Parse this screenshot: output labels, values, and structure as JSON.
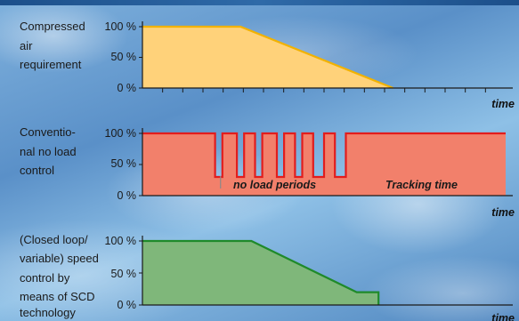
{
  "chart_data": [
    {
      "type": "area",
      "title": "Compressed air requirement",
      "title_lines": [
        "Compressed",
        "air",
        "requirement"
      ],
      "xlabel": "time",
      "y_ticks": [
        "100 %",
        "50 %",
        "0 %"
      ],
      "ylim": [
        0,
        100
      ],
      "x": [
        0,
        0.27,
        0.69
      ],
      "y": [
        100,
        100,
        0
      ],
      "fill": "#ffd27a",
      "stroke": "#f2b200"
    },
    {
      "type": "area",
      "title": "Conventional no load control",
      "title_lines": [
        "Conventio-",
        "nal no load",
        "control"
      ],
      "xlabel": "time",
      "y_ticks": [
        "100 %",
        "50 %",
        "0 %"
      ],
      "ylim": [
        0,
        100
      ],
      "x": [
        0,
        0.2,
        0.2,
        0.22,
        0.22,
        0.26,
        0.26,
        0.28,
        0.28,
        0.31,
        0.31,
        0.33,
        0.33,
        0.37,
        0.37,
        0.39,
        0.39,
        0.42,
        0.42,
        0.44,
        0.44,
        0.47,
        0.47,
        0.5,
        0.5,
        0.53,
        0.53,
        0.56,
        0.56,
        1.0
      ],
      "y": [
        100,
        100,
        30,
        30,
        100,
        100,
        30,
        30,
        100,
        100,
        30,
        30,
        100,
        100,
        30,
        30,
        100,
        100,
        30,
        30,
        100,
        100,
        30,
        30,
        100,
        100,
        30,
        30,
        100,
        100
      ],
      "annotations": [
        "no load periods",
        "Tracking time"
      ],
      "fill": "#f2806b",
      "stroke": "#e21d1d"
    },
    {
      "type": "area",
      "title": "(Closed loop/variable) speed control by means of SCD technology",
      "title_lines": [
        "(Closed loop/",
        "variable) speed",
        "control by",
        "means of SCD",
        "technology"
      ],
      "xlabel": "time",
      "y_ticks": [
        "100 %",
        "50 %",
        "0 %"
      ],
      "ylim": [
        0,
        100
      ],
      "x": [
        0,
        0.3,
        0.59,
        0.65,
        0.65
      ],
      "y": [
        100,
        100,
        20,
        20,
        0
      ],
      "fill": "#7fb77a",
      "stroke": "#1f8a2a"
    }
  ],
  "colors": {
    "axis": "#1a1a1a"
  }
}
